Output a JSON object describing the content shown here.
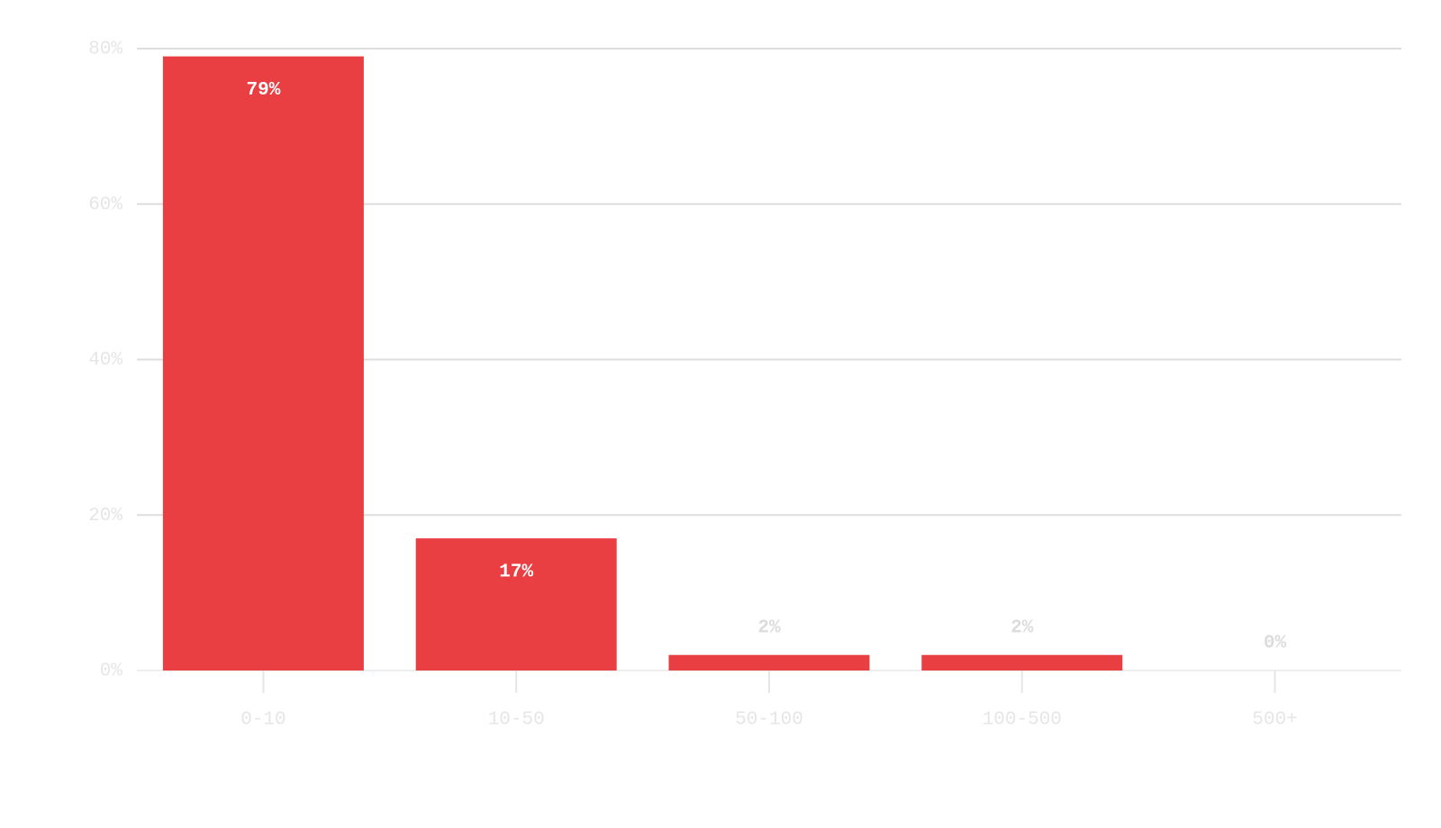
{
  "chart_data": {
    "type": "bar",
    "categories": [
      "0-10",
      "10-50",
      "50-100",
      "100-500",
      "500+"
    ],
    "values": [
      79,
      17,
      2,
      2,
      0
    ],
    "value_labels": [
      "79%",
      "17%",
      "2%",
      "2%",
      "0%"
    ],
    "color": "#e93f42",
    "ylim": [
      0,
      80
    ],
    "yticks": [
      {
        "value": 0,
        "label": "0%"
      },
      {
        "value": 20,
        "label": "20%"
      },
      {
        "value": 40,
        "label": "40%"
      },
      {
        "value": 60,
        "label": "60%"
      },
      {
        "value": 80,
        "label": "80%"
      }
    ],
    "grid": true
  }
}
